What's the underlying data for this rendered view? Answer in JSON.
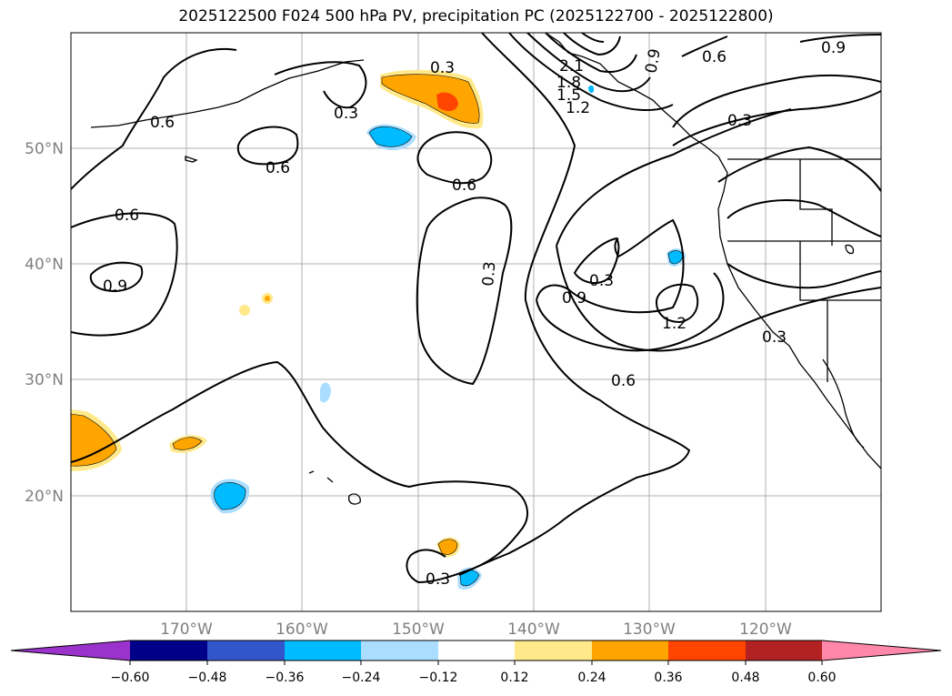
{
  "title": "2025122500 F024 500 hPa PV, precipitation PC (2025122700 - 2025122800)",
  "map": {
    "lat_labels": [
      "50°N",
      "40°N",
      "30°N",
      "20°N"
    ],
    "lon_labels": [
      "170°W",
      "160°W",
      "150°W",
      "140°W",
      "130°W",
      "120°W"
    ],
    "contour_levels": [
      "0.3",
      "0.6",
      "0.9",
      "1.2",
      "1.5",
      "1.8",
      "2.1"
    ]
  },
  "colorbar": {
    "tick_labels": [
      "−0.60",
      "−0.48",
      "−0.36",
      "−0.24",
      "−0.12",
      "0.12",
      "0.24",
      "0.36",
      "0.48",
      "0.60"
    ],
    "colors": [
      "#9933cc",
      "#000088",
      "#3355cc",
      "#00bbff",
      "#aaddff",
      "#ffffff",
      "#ffe98a",
      "#ffa500",
      "#ff4500",
      "#b22222",
      "#ff88aa"
    ]
  }
}
